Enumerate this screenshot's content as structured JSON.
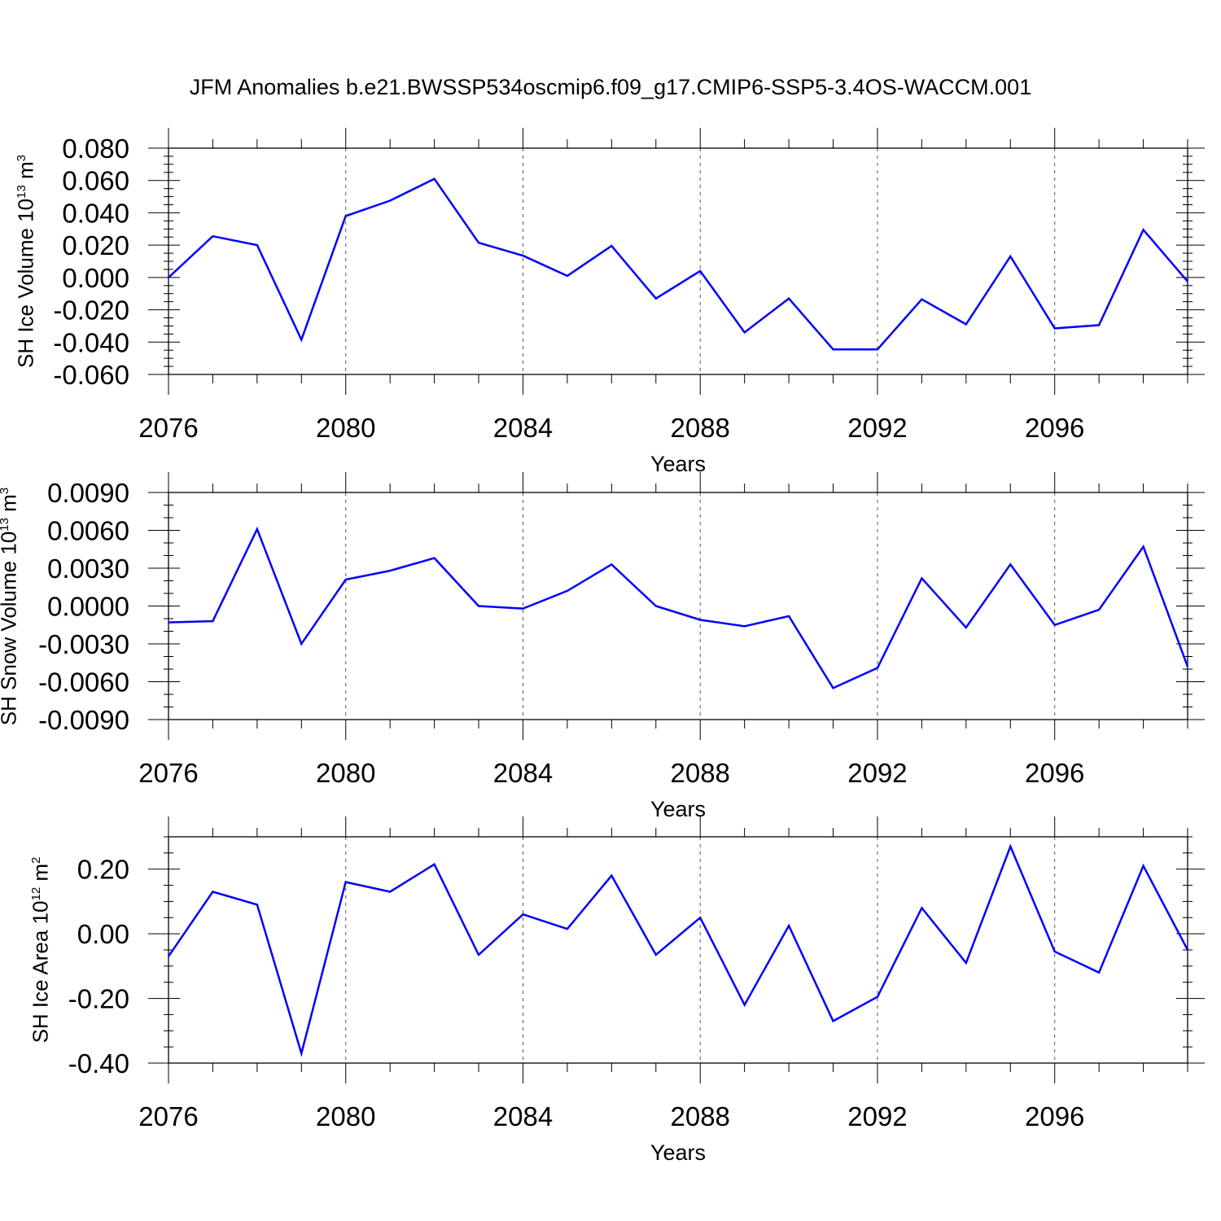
{
  "title": "JFM Anomalies b.e21.BWSSP534oscmip6.f09_g17.CMIP6-SSP5-3.4OS-WACCM.001",
  "line_color": "#0000ff",
  "chart_data": [
    {
      "type": "line",
      "xlabel": "Years",
      "ylabel": {
        "text": "SH Ice Volume 10",
        "exp": "13",
        "unit": " m",
        "unit_exp": "3"
      },
      "xlim": [
        2076,
        2099
      ],
      "ylim": [
        -0.06,
        0.08
      ],
      "x_ticks": [
        2076,
        2080,
        2084,
        2088,
        2092,
        2096
      ],
      "x_tick_labels": [
        "2076",
        "2080",
        "2084",
        "2088",
        "2092",
        "2096"
      ],
      "y_ticks": [
        -0.06,
        -0.04,
        -0.02,
        0.0,
        0.02,
        0.04,
        0.06,
        0.08
      ],
      "y_tick_labels": [
        "-0.060",
        "-0.040",
        "-0.020",
        "0.000",
        "0.020",
        "0.040",
        "0.060",
        "0.080"
      ],
      "y_minor_step": 0.005,
      "grid": "vertical dashed",
      "series": [
        {
          "x": [
            2076,
            2077,
            2078,
            2079,
            2080,
            2081,
            2082,
            2083,
            2084,
            2085,
            2086,
            2087,
            2088,
            2089,
            2090,
            2091,
            2092,
            2093,
            2094,
            2095,
            2096,
            2097,
            2098,
            2099
          ],
          "values": [
            0.0,
            0.0255,
            0.02,
            -0.0385,
            0.038,
            0.0475,
            0.061,
            0.0215,
            0.0135,
            0.001,
            0.0195,
            -0.013,
            0.004,
            -0.034,
            -0.013,
            -0.0445,
            -0.0445,
            -0.0135,
            -0.029,
            0.013,
            -0.0315,
            -0.0295,
            0.0295,
            -0.0025
          ]
        }
      ]
    },
    {
      "type": "line",
      "xlabel": "Years",
      "ylabel": {
        "text": "SH Snow Volume 10",
        "exp": "13",
        "unit": " m",
        "unit_exp": "3"
      },
      "xlim": [
        2076,
        2099
      ],
      "ylim": [
        -0.009,
        0.009
      ],
      "x_ticks": [
        2076,
        2080,
        2084,
        2088,
        2092,
        2096
      ],
      "x_tick_labels": [
        "2076",
        "2080",
        "2084",
        "2088",
        "2092",
        "2096"
      ],
      "y_ticks": [
        -0.009,
        -0.006,
        -0.003,
        0.0,
        0.003,
        0.006,
        0.009
      ],
      "y_tick_labels": [
        "-0.0090",
        "-0.0060",
        "-0.0030",
        "0.0000",
        "0.0030",
        "0.0060",
        "0.0090"
      ],
      "y_minor_step": 0.001,
      "grid": "vertical dashed",
      "series": [
        {
          "x": [
            2076,
            2077,
            2078,
            2079,
            2080,
            2081,
            2082,
            2083,
            2084,
            2085,
            2086,
            2087,
            2088,
            2089,
            2090,
            2091,
            2092,
            2093,
            2094,
            2095,
            2096,
            2097,
            2098,
            2099
          ],
          "values": [
            -0.0013,
            -0.0012,
            0.0061,
            -0.003,
            0.0021,
            0.0028,
            0.0038,
            0.0,
            -0.0002,
            0.0012,
            0.0033,
            0.0,
            -0.0011,
            -0.0016,
            -0.0008,
            -0.0065,
            -0.0049,
            0.0022,
            -0.0017,
            0.0033,
            -0.0015,
            -0.0003,
            0.0047,
            -0.0048
          ]
        }
      ]
    },
    {
      "type": "line",
      "xlabel": "Years",
      "ylabel": {
        "text": "SH Ice Area 10",
        "exp": "12",
        "unit": " m",
        "unit_exp": "2"
      },
      "xlim": [
        2076,
        2099
      ],
      "ylim": [
        -0.4,
        0.3
      ],
      "x_ticks": [
        2076,
        2080,
        2084,
        2088,
        2092,
        2096
      ],
      "x_tick_labels": [
        "2076",
        "2080",
        "2084",
        "2088",
        "2092",
        "2096"
      ],
      "y_ticks": [
        -0.4,
        -0.2,
        0.0,
        0.2
      ],
      "y_tick_labels": [
        "-0.40",
        "-0.20",
        "0.00",
        "0.20"
      ],
      "y_minor_step": 0.05,
      "grid": "vertical dashed",
      "series": [
        {
          "x": [
            2076,
            2077,
            2078,
            2079,
            2080,
            2081,
            2082,
            2083,
            2084,
            2085,
            2086,
            2087,
            2088,
            2089,
            2090,
            2091,
            2092,
            2093,
            2094,
            2095,
            2096,
            2097,
            2098,
            2099
          ],
          "values": [
            -0.07,
            0.13,
            0.09,
            -0.37,
            0.16,
            0.13,
            0.215,
            -0.065,
            0.06,
            0.015,
            0.18,
            -0.065,
            0.05,
            -0.22,
            0.025,
            -0.27,
            -0.195,
            0.08,
            -0.09,
            0.27,
            -0.055,
            -0.12,
            0.21,
            -0.05
          ]
        }
      ]
    }
  ]
}
